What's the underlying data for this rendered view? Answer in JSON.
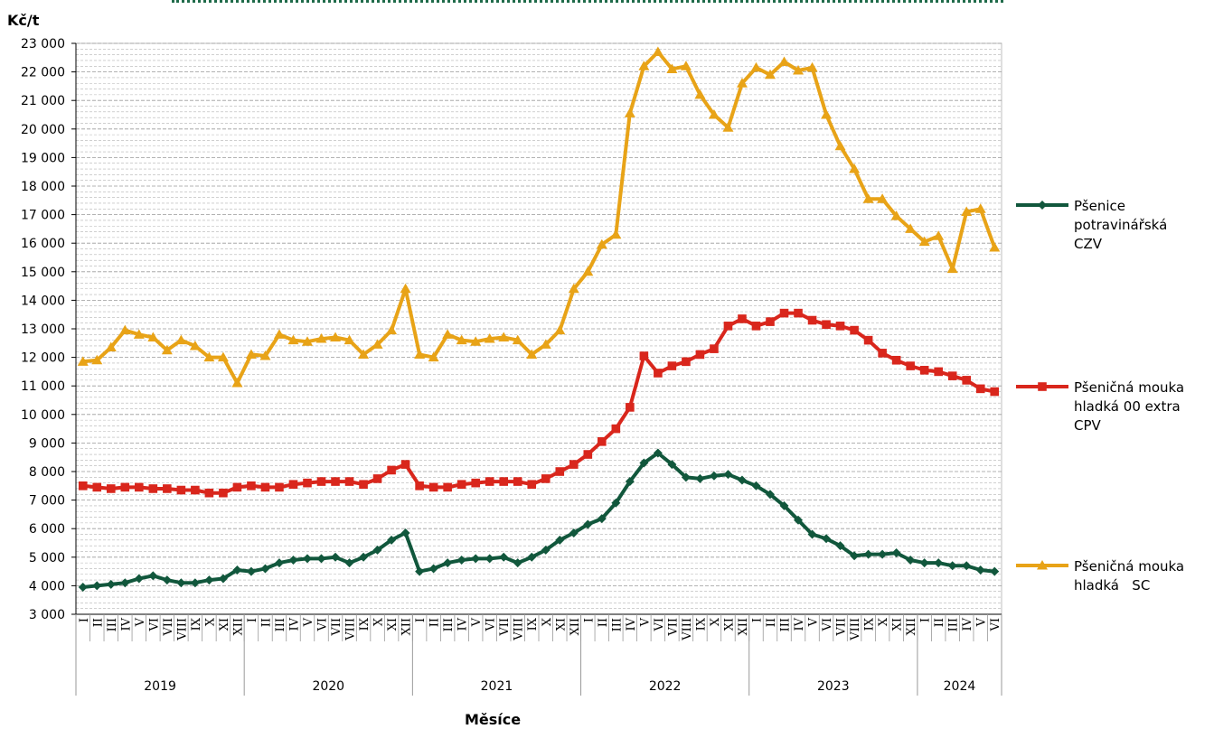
{
  "chart_data": {
    "type": "line",
    "ylabel": "Kč/t",
    "xlabel": "Měsíce",
    "ylim": [
      3000,
      23000
    ],
    "yticks": [
      "3 000",
      "4 000",
      "5 000",
      "6 000",
      "7 000",
      "8 000",
      "9 000",
      "10 000",
      "11 000",
      "12 000",
      "13 000",
      "14 000",
      "15 000",
      "16 000",
      "17 000",
      "18 000",
      "19 000",
      "20 000",
      "21 000",
      "22 000",
      "23 000"
    ],
    "grid": "horizontal dashed, every 200",
    "legend": "right",
    "month_labels": [
      "I",
      "II",
      "III",
      "IV",
      "V",
      "VI",
      "VII",
      "VIII",
      "IX",
      "X",
      "XI",
      "XII"
    ],
    "years": [
      {
        "label": "2019",
        "months": 12
      },
      {
        "label": "2020",
        "months": 12
      },
      {
        "label": "2021",
        "months": 12
      },
      {
        "label": "2022",
        "months": 12
      },
      {
        "label": "2023",
        "months": 12
      },
      {
        "label": "2024",
        "months": 6
      }
    ],
    "series": [
      {
        "name": "Pšenice potravinářská CZV",
        "legend_lines": [
          "Pšenice",
          "potravinářská",
          "CZV"
        ],
        "color": "#11573c",
        "marker": "diamond",
        "values": [
          3950,
          4000,
          4050,
          4100,
          4250,
          4350,
          4200,
          4100,
          4100,
          4200,
          4250,
          4550,
          4500,
          4600,
          4800,
          4900,
          4950,
          4950,
          5000,
          4800,
          5000,
          5250,
          5600,
          5850,
          4500,
          4600,
          4800,
          4900,
          4950,
          4950,
          5000,
          4800,
          5000,
          5250,
          5600,
          5850,
          6150,
          6350,
          6900,
          7650,
          8300,
          8650,
          8250,
          7800,
          7750,
          7850,
          7900,
          7700,
          7500,
          7200,
          6800,
          6300,
          5800,
          5650,
          5400,
          5050,
          5100,
          5100,
          5150,
          4900,
          4800,
          4800,
          4700,
          4700,
          4550,
          4500
        ]
      },
      {
        "name": "Pšeničná mouka hladká 00 extra CPV",
        "legend_lines": [
          "Pšeničná mouka",
          "hladká 00 extra",
          "CPV"
        ],
        "color": "#d9261c",
        "marker": "square",
        "values": [
          7500,
          7450,
          7400,
          7450,
          7450,
          7400,
          7400,
          7350,
          7350,
          7250,
          7250,
          7450,
          7500,
          7450,
          7450,
          7550,
          7600,
          7650,
          7650,
          7650,
          7550,
          7750,
          8050,
          8250,
          7500,
          7450,
          7450,
          7550,
          7600,
          7650,
          7650,
          7650,
          7550,
          7750,
          8000,
          8250,
          8600,
          9050,
          9500,
          10250,
          12050,
          11450,
          11700,
          11850,
          12100,
          12300,
          13100,
          13350,
          13100,
          13250,
          13550,
          13550,
          13300,
          13150,
          13100,
          12950,
          12600,
          12150,
          11900,
          11700,
          11550,
          11500,
          11350,
          11200,
          10900,
          10800
        ]
      },
      {
        "name": "Pšeničná mouka hladká SC",
        "legend_lines": [
          "Pšeničná mouka",
          "hladká   SC"
        ],
        "color": "#e8a317",
        "marker": "triangle",
        "values": [
          11850,
          11900,
          12350,
          12950,
          12800,
          12700,
          12250,
          12600,
          12400,
          12000,
          12000,
          11100,
          12100,
          12050,
          12800,
          12600,
          12550,
          12650,
          12700,
          12600,
          12100,
          12450,
          12950,
          14400,
          12100,
          12000,
          12800,
          12600,
          12550,
          12650,
          12700,
          12600,
          12100,
          12450,
          12950,
          14400,
          15000,
          15950,
          16300,
          20550,
          22200,
          22700,
          22100,
          22200,
          21200,
          20500,
          20050,
          21600,
          22150,
          21900,
          22350,
          22050,
          22150,
          20500,
          19400,
          18600,
          17550,
          17550,
          16950,
          16500,
          16050,
          16250,
          15100,
          17100,
          17200,
          15850
        ]
      }
    ]
  }
}
